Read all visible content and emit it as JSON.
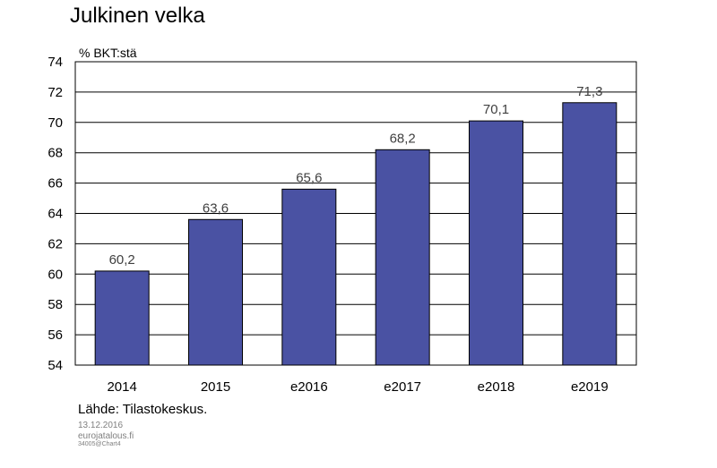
{
  "header": {
    "title": "Julkinen velka"
  },
  "chart_data": {
    "type": "bar",
    "title": "Julkinen velka",
    "ylabel": "% BKT:stä",
    "xlabel": "",
    "categories": [
      "2014",
      "2015",
      "e2016",
      "e2017",
      "e2018",
      "e2019"
    ],
    "values": [
      60.2,
      63.6,
      65.6,
      68.2,
      70.1,
      71.3
    ],
    "data_labels": [
      "60,2",
      "63,6",
      "65,6",
      "68,2",
      "70,1",
      "71,3"
    ],
    "ylim": [
      54,
      74
    ],
    "yticks": [
      54,
      56,
      58,
      60,
      62,
      64,
      66,
      68,
      70,
      72,
      74
    ],
    "grid": true,
    "legend": "none",
    "colors": {
      "bar": "#4a52a3",
      "bar_outline": "#000000",
      "data_label": "#404040"
    }
  },
  "footer": {
    "source": "Lähde: Tilastokeskus.",
    "date": "13.12.2016",
    "site": "eurojatalous.fi",
    "code": "34005@Chart4"
  }
}
